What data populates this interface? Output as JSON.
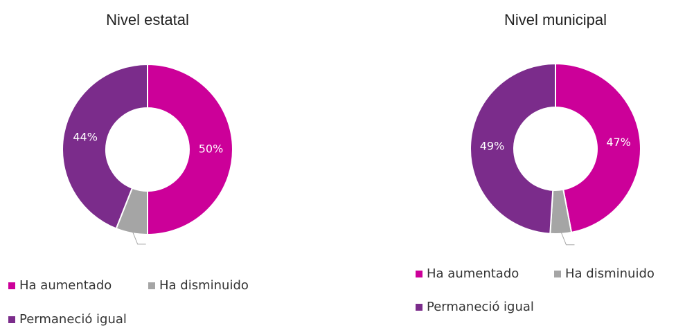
{
  "chart_data": [
    {
      "type": "donut",
      "title": "Nivel estatal",
      "categories": [
        "Ha aumentado",
        "Ha disminuido",
        "Permaneció igual"
      ],
      "values": [
        50,
        6,
        44
      ],
      "value_labels": [
        "50%",
        null,
        "44%"
      ],
      "colors": [
        "#cc0099",
        "#a5a5a5",
        "#7b2c8b"
      ]
    },
    {
      "type": "donut",
      "title": "Nivel municipal",
      "categories": [
        "Ha aumentado",
        "Ha disminuido",
        "Permaneció igual"
      ],
      "values": [
        47,
        4,
        49
      ],
      "value_labels": [
        "47%",
        null,
        "49%"
      ],
      "colors": [
        "#cc0099",
        "#a5a5a5",
        "#7b2c8b"
      ]
    }
  ]
}
